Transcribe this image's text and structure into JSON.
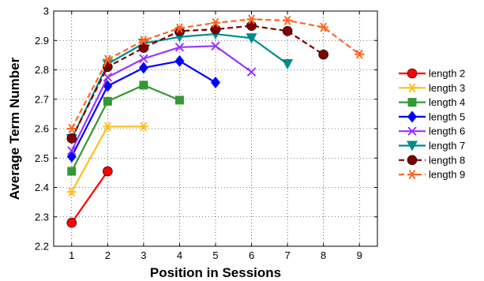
{
  "chart_data": {
    "type": "line",
    "title": "",
    "xlabel": "Position in Sessions",
    "ylabel": "Average Term Number",
    "xlim": [
      0.5,
      9.5
    ],
    "ylim": [
      2.2,
      3.0
    ],
    "xticks": [
      "1",
      "2",
      "3",
      "4",
      "5",
      "6",
      "7",
      "8",
      "9"
    ],
    "yticks": [
      "2.2",
      "2.3",
      "2.4",
      "2.5",
      "2.6",
      "2.7",
      "2.8",
      "2.9",
      "3"
    ],
    "grid": true,
    "legend_position": "outside-right",
    "series": [
      {
        "name": "length 2",
        "color": "#ff0000",
        "marker": "circle",
        "dash": false,
        "x": [
          1,
          2
        ],
        "y": [
          2.28,
          2.455
        ]
      },
      {
        "name": "length 3",
        "color": "#ffbf19",
        "marker": "asterisk",
        "dash": false,
        "x": [
          1,
          2,
          3
        ],
        "y": [
          2.385,
          2.607,
          2.607
        ]
      },
      {
        "name": "length 4",
        "color": "#339933",
        "marker": "square",
        "dash": false,
        "x": [
          1,
          2,
          3,
          4
        ],
        "y": [
          2.455,
          2.693,
          2.748,
          2.697
        ]
      },
      {
        "name": "length 5",
        "color": "#0000ff",
        "marker": "diamond",
        "dash": false,
        "x": [
          1,
          2,
          3,
          4,
          5
        ],
        "y": [
          2.505,
          2.745,
          2.807,
          2.83,
          2.757
        ]
      },
      {
        "name": "length 6",
        "color": "#9933ff",
        "marker": "x",
        "dash": false,
        "x": [
          1,
          2,
          3,
          4,
          5,
          6
        ],
        "y": [
          2.525,
          2.775,
          2.838,
          2.877,
          2.881,
          2.793
        ]
      },
      {
        "name": "length 7",
        "color": "#008b8b",
        "marker": "triangle-down",
        "dash": false,
        "x": [
          1,
          2,
          3,
          4,
          5,
          6,
          7
        ],
        "y": [
          2.565,
          2.82,
          2.89,
          2.912,
          2.922,
          2.908,
          2.82
        ]
      },
      {
        "name": "length 8",
        "color": "#800000",
        "marker": "circle",
        "dash": true,
        "x": [
          1,
          2,
          3,
          4,
          5,
          6,
          7,
          8
        ],
        "y": [
          2.567,
          2.81,
          2.875,
          2.932,
          2.938,
          2.95,
          2.932,
          2.852
        ]
      },
      {
        "name": "length 9",
        "color": "#ff6622",
        "marker": "asterisk",
        "dash": true,
        "x": [
          1,
          2,
          3,
          4,
          5,
          6,
          7,
          8,
          9
        ],
        "y": [
          2.6,
          2.835,
          2.9,
          2.942,
          2.96,
          2.972,
          2.968,
          2.945,
          2.853
        ]
      }
    ]
  }
}
